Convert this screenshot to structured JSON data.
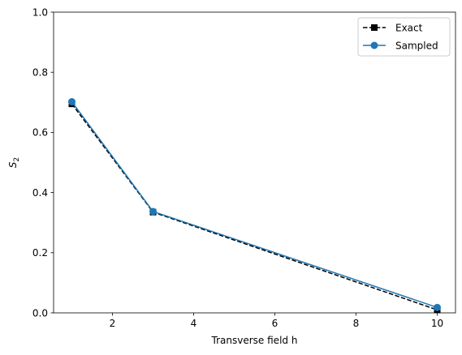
{
  "chart_data": {
    "type": "line",
    "title": "",
    "xlabel": "Transverse field h",
    "ylabel": "S",
    "ylabel_subscript": "2",
    "xlim": [
      0.55,
      10.45
    ],
    "ylim": [
      0.0,
      1.0
    ],
    "x_ticks": [
      2,
      4,
      6,
      8,
      10
    ],
    "y_ticks": [
      0.0,
      0.2,
      0.4,
      0.6,
      0.8,
      1.0
    ],
    "x_tick_labels": [
      "2",
      "4",
      "6",
      "8",
      "10"
    ],
    "y_tick_labels": [
      "0.0",
      "0.2",
      "0.4",
      "0.6",
      "0.8",
      "1.0"
    ],
    "grid": false,
    "legend_position": "top-right",
    "series": [
      {
        "name": "Exact",
        "x": [
          1,
          3,
          10
        ],
        "y": [
          0.695,
          0.335,
          0.01
        ],
        "color": "#000000",
        "linestyle": "dashed",
        "marker": "square"
      },
      {
        "name": "Sampled",
        "x": [
          1,
          3,
          10
        ],
        "y": [
          0.702,
          0.337,
          0.018
        ],
        "color": "#1f77b4",
        "linestyle": "solid",
        "marker": "circle"
      }
    ]
  }
}
